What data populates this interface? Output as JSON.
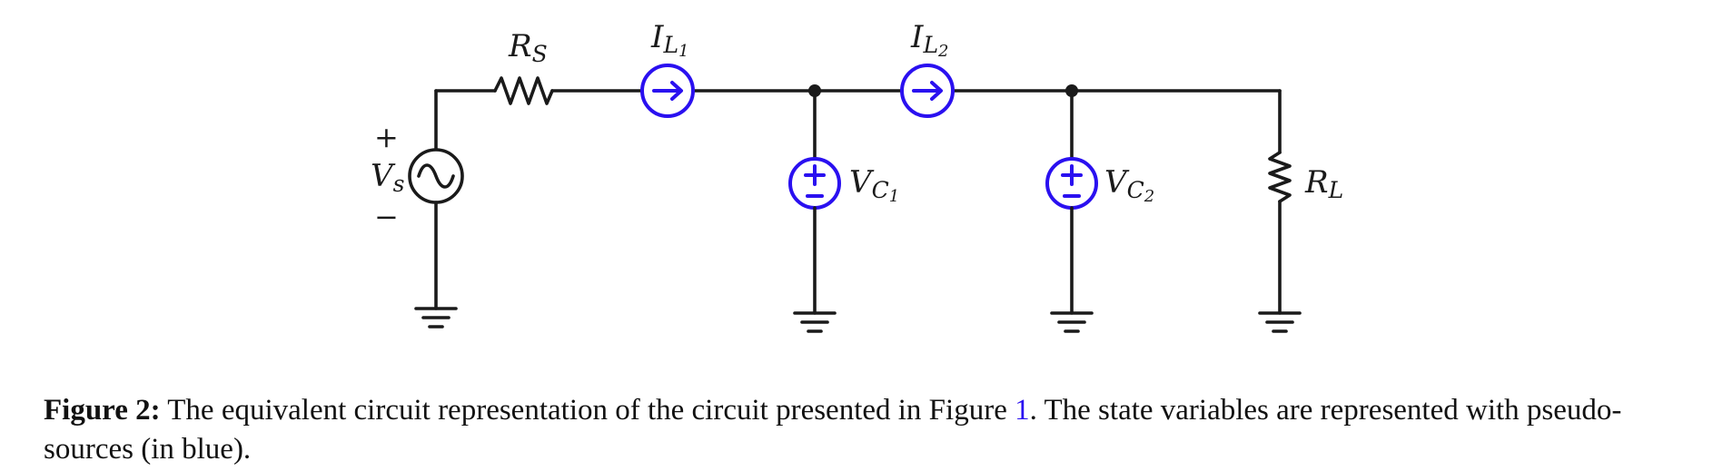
{
  "labels": {
    "rs": {
      "main": "R",
      "sub": "S"
    },
    "il1": {
      "main": "I",
      "sub": "L",
      "subsub": "1"
    },
    "il2": {
      "main": "I",
      "sub": "L",
      "subsub": "2"
    },
    "vc1": {
      "main": "V",
      "sub": "C",
      "subsub": "1"
    },
    "vc2": {
      "main": "V",
      "sub": "C",
      "subsub": "2"
    },
    "rl": {
      "main": "R",
      "sub": "L"
    },
    "vs": {
      "main": "V",
      "sub": "s",
      "plus": "+",
      "minus": "−"
    }
  },
  "colors": {
    "wire": "#1a1a1a",
    "pseudo_source": "#2a10f0",
    "reference_link": "#2a10f0"
  },
  "caption": {
    "lead": "Figure 2:",
    "text_before_ref": " The equivalent circuit representation of the circuit presented in Figure ",
    "ref": "1",
    "text_after_ref": ". The state variables are represented with pseudo-sources (in blue)."
  }
}
